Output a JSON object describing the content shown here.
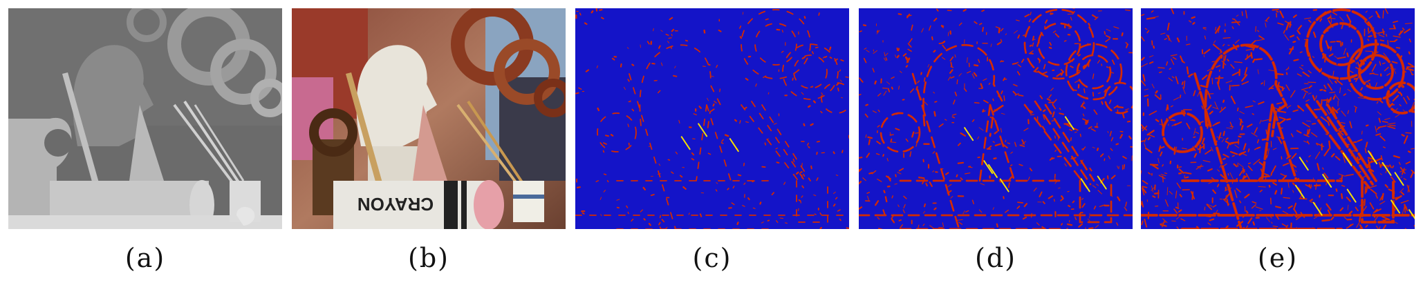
{
  "captions": [
    "(a)",
    "(b)",
    "(c)",
    "(d)",
    "(e)"
  ],
  "panel_c_density": 0.25,
  "panel_d_density": 0.55,
  "panel_e_density": 0.95,
  "colors": {
    "error_background": "#1414c8",
    "error_high": "#d42a00",
    "error_peak": "#f7e000",
    "depth_background": "#6e6e6e"
  },
  "photo_text": "CRAYON"
}
